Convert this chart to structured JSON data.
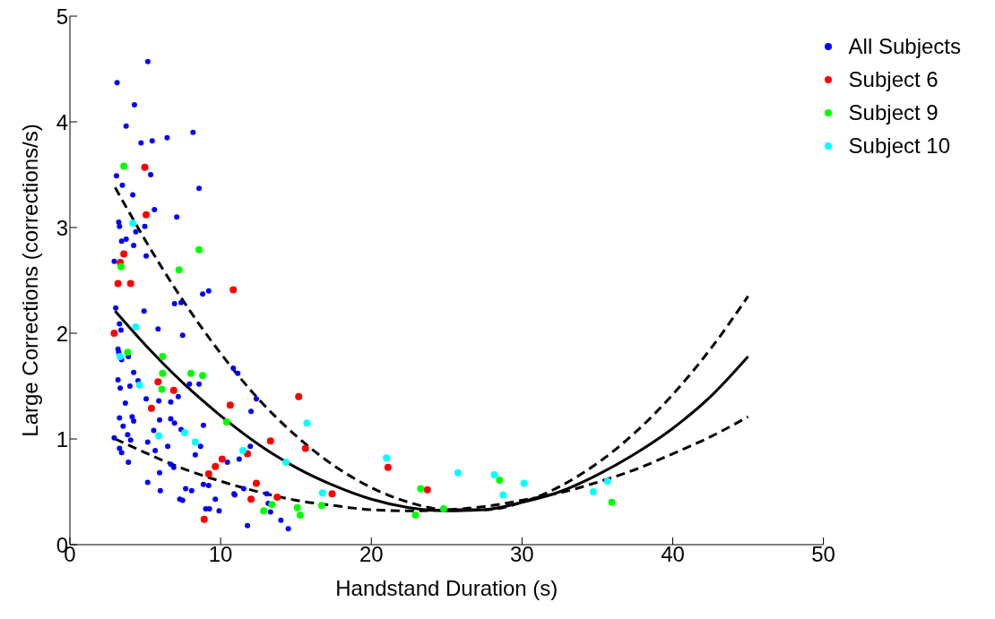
{
  "chart_data": {
    "type": "scatter",
    "xlabel": "Handstand Duration (s)",
    "ylabel": "Large Corrections (corrections/s)",
    "xlim": [
      0,
      50
    ],
    "xticks": [
      0,
      10,
      20,
      30,
      40,
      50
    ],
    "ylim": [
      0,
      5
    ],
    "yticks": [
      0,
      1,
      2,
      3,
      4,
      5
    ],
    "grid": false,
    "legend": "top right",
    "marker": "circle",
    "series": [
      {
        "name": "All Subjects",
        "color": "#0000ff",
        "x": [
          3.13,
          4.28,
          3.73,
          4.72,
          5.46,
          6.45,
          8.17,
          5.17,
          3.09,
          5.36,
          3.48,
          8.57,
          4.17,
          5.61,
          7.09,
          3.24,
          3.29,
          4.97,
          4.37,
          3.43,
          3.73,
          4.23,
          5.06,
          2.94,
          3.04,
          4.92,
          6.94,
          7.38,
          8.81,
          9.21,
          3.29,
          3.39,
          5.85,
          7.48,
          3.19,
          3.24,
          3.88,
          3.43,
          4.23,
          3.19,
          3.34,
          3.98,
          4.52,
          7.93,
          8.57,
          7.19,
          5.06,
          5.9,
          6.69,
          3.68,
          3.29,
          4.13,
          4.23,
          5.95,
          6.69,
          6.94,
          3.53,
          8.86,
          7.38,
          3.83,
          5.56,
          2.94,
          4.03,
          5.16,
          3.29,
          3.43,
          6.49,
          5.66,
          8.67,
          8.32,
          3.88,
          10.45,
          6.69,
          6.89,
          5.95,
          5.16,
          6.0,
          7.68,
          8.08,
          8.86,
          9.21,
          7.29,
          7.48,
          9.65,
          9.01,
          9.26,
          9.9,
          10.89,
          10.84,
          11.14,
          12.37,
          12.02,
          11.97,
          11.23,
          11.53,
          10.94,
          13.06,
          13.16,
          13.31,
          11.78,
          14.0,
          14.49
        ],
        "values": [
          4.37,
          4.16,
          3.96,
          3.8,
          3.82,
          3.85,
          3.9,
          4.57,
          3.49,
          3.5,
          3.4,
          3.37,
          3.31,
          3.17,
          3.1,
          3.05,
          3.01,
          3.01,
          2.96,
          2.87,
          2.89,
          2.83,
          2.73,
          2.68,
          2.24,
          2.21,
          2.28,
          2.29,
          2.37,
          2.4,
          2.09,
          2.03,
          2.04,
          1.98,
          1.85,
          1.82,
          1.78,
          1.75,
          1.63,
          1.56,
          1.48,
          1.5,
          1.55,
          1.52,
          1.52,
          1.4,
          1.38,
          1.36,
          1.35,
          1.34,
          1.2,
          1.21,
          1.17,
          1.18,
          1.19,
          1.15,
          1.12,
          1.13,
          1.09,
          1.04,
          1.08,
          1.01,
          0.99,
          0.97,
          0.91,
          0.87,
          0.93,
          0.89,
          0.93,
          0.85,
          0.78,
          0.78,
          0.76,
          0.73,
          0.68,
          0.59,
          0.51,
          0.53,
          0.51,
          0.57,
          0.56,
          0.43,
          0.42,
          0.43,
          0.34,
          0.34,
          0.32,
          0.48,
          1.67,
          1.62,
          1.38,
          1.26,
          0.93,
          0.81,
          0.53,
          0.47,
          0.48,
          0.39,
          0.31,
          0.18,
          0.23,
          0.15
        ]
      },
      {
        "name": "Subject 6",
        "color": "#ff0000",
        "x": [
          2.94,
          3.19,
          3.34,
          3.58,
          4.03,
          4.97,
          5.06,
          5.85,
          6.89,
          5.41,
          5.95,
          10.84,
          10.64,
          10.1,
          9.65,
          9.21,
          8.91,
          15.18,
          13.31,
          15.63,
          11.78,
          12.37,
          12.02,
          13.75,
          17.4,
          21.11,
          23.72
        ],
        "values": [
          2.0,
          2.47,
          2.67,
          2.75,
          2.47,
          3.57,
          3.12,
          1.54,
          1.46,
          1.29,
          null,
          2.41,
          1.32,
          0.81,
          0.74,
          0.67,
          0.24,
          1.4,
          0.98,
          0.91,
          0.86,
          0.58,
          0.43,
          0.45,
          0.48,
          0.73,
          0.52
        ]
      },
      {
        "name": "Subject 9",
        "color": "#00ff00",
        "x": [
          3.58,
          8.57,
          7.24,
          3.39,
          3.83,
          6.15,
          6.15,
          6.1,
          8.03,
          8.81,
          10.4,
          13.41,
          12.86,
          15.09,
          15.28,
          16.71,
          23.27,
          22.93,
          24.8,
          28.51,
          35.96
        ],
        "values": [
          3.58,
          2.79,
          2.6,
          2.63,
          1.82,
          1.78,
          1.62,
          1.47,
          1.62,
          1.6,
          1.16,
          0.38,
          0.32,
          0.35,
          0.28,
          0.37,
          0.53,
          0.28,
          0.34,
          0.61,
          0.4
        ]
      },
      {
        "name": "Subject 10",
        "color": "#00ffff",
        "x": [
          4.18,
          4.37,
          3.33,
          4.62,
          5.9,
          7.62,
          8.32,
          15.73,
          11.48,
          14.34,
          16.76,
          21.01,
          25.75,
          28.16,
          28.75,
          30.14,
          34.73,
          35.67
        ],
        "values": [
          3.04,
          2.06,
          1.78,
          1.51,
          1.03,
          1.06,
          0.97,
          1.15,
          0.89,
          0.78,
          0.49,
          0.82,
          0.68,
          0.66,
          0.47,
          0.58,
          0.5,
          0.6
        ]
      },
      {
        "type": "line",
        "color": "#000000",
        "line_style": "dashed",
        "marker": "none",
        "x": [
          3,
          5,
          7.5,
          10,
          12.5,
          15,
          17.5,
          20,
          22.5,
          25,
          27.5,
          30,
          32.5,
          35,
          37.5,
          40,
          42.5,
          45
        ],
        "values": [
          3.38,
          2.88,
          2.31,
          1.81,
          1.38,
          1.03,
          0.75,
          0.54,
          0.4,
          0.33,
          0.33,
          0.4,
          0.55,
          0.77,
          1.06,
          1.42,
          1.85,
          2.35
        ]
      },
      {
        "type": "line",
        "color": "#000000",
        "line_style": "solid",
        "marker": "none",
        "x": [
          3,
          5,
          7.5,
          10,
          12.5,
          15,
          17.5,
          20,
          22.5,
          25,
          27.5,
          30,
          32.5,
          35,
          37.5,
          40,
          42.5,
          45
        ],
        "values": [
          2.21,
          1.89,
          1.53,
          1.22,
          0.95,
          0.73,
          0.56,
          0.43,
          0.35,
          0.32,
          0.33,
          0.4,
          0.5,
          0.66,
          0.86,
          1.1,
          1.4,
          1.78
        ]
      },
      {
        "type": "line",
        "color": "#000000",
        "line_style": "dashed",
        "marker": "none",
        "x": [
          3,
          5,
          7.5,
          10,
          12.5,
          15,
          17.5,
          20,
          22.5,
          25,
          27.5,
          30,
          32.5,
          35,
          37.5,
          40,
          42.5,
          45
        ],
        "values": [
          1.0,
          0.87,
          0.72,
          0.6,
          0.5,
          0.42,
          0.37,
          0.33,
          0.32,
          0.33,
          0.36,
          0.42,
          0.49,
          0.59,
          0.71,
          0.86,
          1.02,
          1.21
        ]
      }
    ]
  }
}
